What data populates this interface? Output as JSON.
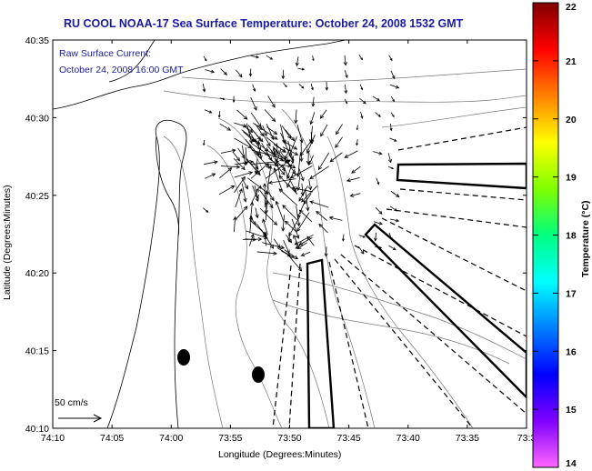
{
  "title": "RU COOL  NOAA-17  Sea Surface Temperature:  October 24, 2008 1532 GMT",
  "overlay": {
    "line1": "Raw Surface Current:",
    "line2": "October 24, 2008 16:00 GMT"
  },
  "scale": {
    "label": "50 cm/s"
  },
  "axes": {
    "xlabel": "Longitude (Degrees:Minutes)",
    "ylabel": "Latitude (Degrees:Minutes)",
    "x_ticks": [
      "74:10",
      "74:05",
      "74:00",
      "73:55",
      "73:50",
      "73:45",
      "73:40",
      "73:35",
      "73:3"
    ],
    "y_ticks": [
      "40:35",
      "40:30",
      "40:25",
      "40:20",
      "40:15",
      "40:10"
    ]
  },
  "colorbar": {
    "label": "Temperature (°C)",
    "min": 14,
    "max": 22,
    "ticks": [
      "22",
      "21",
      "20",
      "19",
      "18",
      "17",
      "16",
      "15",
      "14"
    ],
    "colors": [
      "#ff66ff",
      "#8000ff",
      "#0000ff",
      "#0080ff",
      "#00ffff",
      "#00ff80",
      "#80ff00",
      "#ffff00",
      "#ff8000",
      "#ff0000",
      "#800000"
    ]
  },
  "map_layers": {
    "coastline": "coastline",
    "isobaths": "bathymetry-contours",
    "current_vectors": "surface-current-vectors",
    "zones": "closure-zones"
  }
}
